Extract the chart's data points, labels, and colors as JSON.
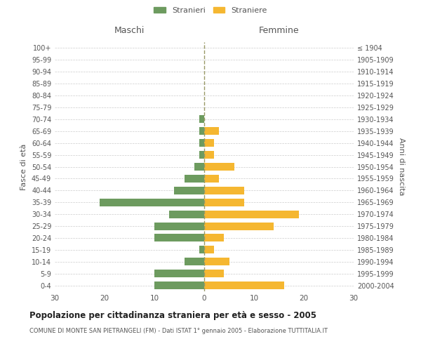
{
  "age_groups": [
    "100+",
    "95-99",
    "90-94",
    "85-89",
    "80-84",
    "75-79",
    "70-74",
    "65-69",
    "60-64",
    "55-59",
    "50-54",
    "45-49",
    "40-44",
    "35-39",
    "30-34",
    "25-29",
    "20-24",
    "15-19",
    "10-14",
    "5-9",
    "0-4"
  ],
  "birth_years": [
    "≤ 1904",
    "1905-1909",
    "1910-1914",
    "1915-1919",
    "1920-1924",
    "1925-1929",
    "1930-1934",
    "1935-1939",
    "1940-1944",
    "1945-1949",
    "1950-1954",
    "1955-1959",
    "1960-1964",
    "1965-1969",
    "1970-1974",
    "1975-1979",
    "1980-1984",
    "1985-1989",
    "1990-1994",
    "1995-1999",
    "2000-2004"
  ],
  "males": [
    0,
    0,
    0,
    0,
    0,
    0,
    1,
    1,
    1,
    1,
    2,
    4,
    6,
    21,
    7,
    10,
    10,
    1,
    4,
    10,
    10
  ],
  "females": [
    0,
    0,
    0,
    0,
    0,
    0,
    0,
    3,
    2,
    2,
    6,
    3,
    8,
    8,
    19,
    14,
    4,
    2,
    5,
    4,
    16
  ],
  "male_color": "#6d9b5f",
  "female_color": "#f5b731",
  "title": "Popolazione per cittadinanza straniera per età e sesso - 2005",
  "subtitle": "COMUNE DI MONTE SAN PIETRANGELI (FM) - Dati ISTAT 1° gennaio 2005 - Elaborazione TUTTITALIA.IT",
  "xlabel_left": "Maschi",
  "xlabel_right": "Femmine",
  "ylabel_left": "Fasce di età",
  "ylabel_right": "Anni di nascita",
  "legend_male": "Stranieri",
  "legend_female": "Straniere",
  "xlim": 30,
  "background_color": "#ffffff",
  "grid_color": "#cccccc",
  "text_color": "#555555",
  "dashed_line_color": "#999966"
}
